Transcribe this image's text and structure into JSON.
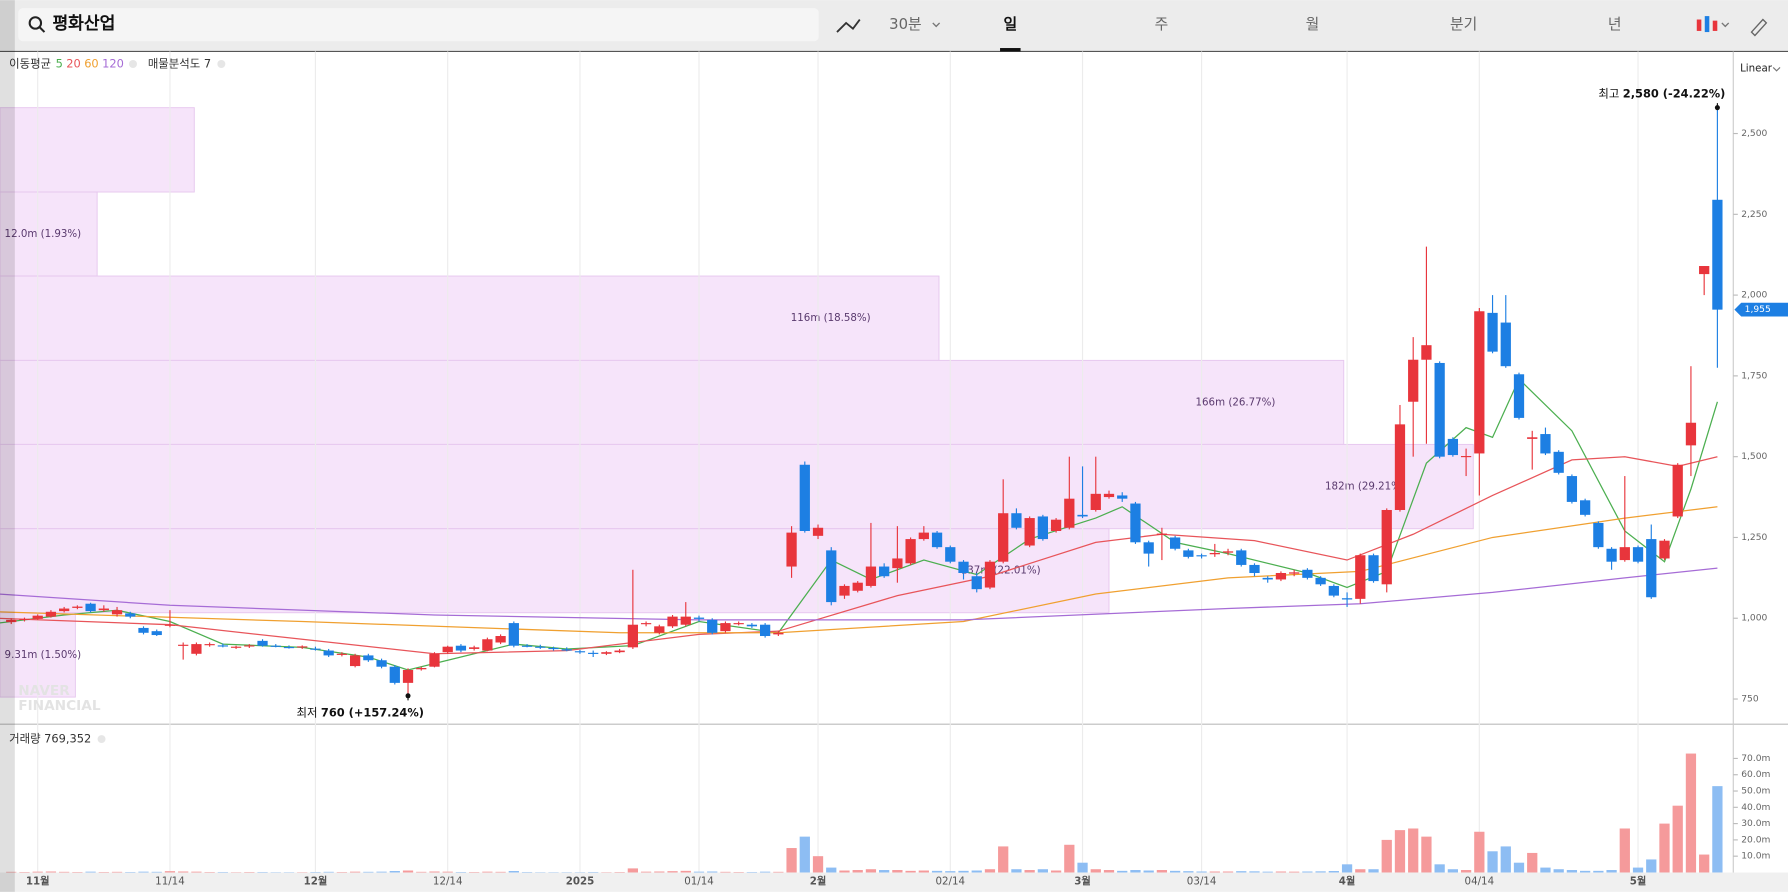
{
  "toolbar": {
    "search": "평화산업",
    "tabs": [
      "30분",
      "일",
      "주",
      "월",
      "분기",
      "년"
    ],
    "selected_tab": 1
  },
  "indicators": {
    "ma_label": "이동평균",
    "profile_label": "매물분석도 7",
    "scale": "Linear",
    "volume_label": "거래량 769,352",
    "watermark": [
      "NAVER",
      "FINANCIAL"
    ]
  },
  "chart_data": [
    {
      "type": "candlestick",
      "up_color": "#e8353c",
      "down_color": "#1d7fe3",
      "grid": "x",
      "xlim": [
        -2.85,
        128.2
      ],
      "ylim": [
        672,
        2754
      ],
      "xticks": [
        {
          "value": 0,
          "label": "11월"
        },
        {
          "value": 10,
          "label": "11/14"
        },
        {
          "value": 21,
          "label": "12월"
        },
        {
          "value": 31,
          "label": "12/14"
        },
        {
          "value": 41,
          "label": "2025"
        },
        {
          "value": 50,
          "label": "01/14"
        },
        {
          "value": 59,
          "label": "2월"
        },
        {
          "value": 69,
          "label": "02/14"
        },
        {
          "value": 79,
          "label": "3월"
        },
        {
          "value": 88,
          "label": "03/14"
        },
        {
          "value": 99,
          "label": "4월"
        },
        {
          "value": 109,
          "label": "04/14"
        },
        {
          "value": 121,
          "label": "5월"
        }
      ],
      "yticks": [
        750,
        {
          "value": 1000,
          "label": "1,000"
        },
        {
          "value": 1250,
          "label": "1,250"
        },
        {
          "value": 1500,
          "label": "1,500"
        },
        {
          "value": 1750,
          "label": "1,750"
        },
        {
          "value": 2000,
          "label": "2,000"
        },
        {
          "value": 2250,
          "label": "2,250"
        },
        {
          "value": 2500,
          "label": "2,500"
        }
      ],
      "x": [
        -2,
        -1,
        0,
        1,
        2,
        3,
        4,
        5,
        6,
        7,
        8,
        9,
        10,
        11,
        12,
        13,
        14,
        15,
        16,
        17,
        18,
        19,
        20,
        21,
        22,
        23,
        24,
        25,
        26,
        27,
        28,
        29,
        30,
        31,
        32,
        33,
        34,
        35,
        36,
        37,
        38,
        39,
        40,
        41,
        42,
        43,
        44,
        45,
        46,
        47,
        48,
        49,
        50,
        51,
        52,
        53,
        54,
        55,
        56,
        57,
        58,
        59,
        60,
        61,
        62,
        63,
        64,
        65,
        66,
        67,
        68,
        69,
        70,
        71,
        72,
        73,
        74,
        75,
        76,
        77,
        78,
        79,
        80,
        81,
        82,
        83,
        84,
        85,
        86,
        87,
        88,
        89,
        90,
        91,
        92,
        93,
        94,
        95,
        96,
        97,
        98,
        99,
        100,
        101,
        102,
        103,
        104,
        105,
        106,
        107,
        108,
        109,
        110,
        111,
        112,
        113,
        114,
        115,
        116,
        117,
        118,
        119,
        120,
        121,
        122,
        123,
        124,
        125,
        126,
        127
      ],
      "open": [
        988,
        995,
        998,
        1005,
        1022,
        1032,
        1045,
        1025,
        1012,
        1015,
        970,
        960,
        978,
        915,
        890,
        918,
        916,
        910,
        914,
        930,
        915,
        911,
        910,
        906,
        900,
        888,
        852,
        885,
        870,
        850,
        800,
        842,
        850,
        895,
        915,
        905,
        900,
        925,
        985,
        915,
        912,
        908,
        904,
        898,
        893,
        890,
        895,
        910,
        982,
        955,
        975,
        980,
        1002,
        995,
        960,
        982,
        980,
        980,
        950,
        1160,
        1475,
        1255,
        1210,
        1070,
        1085,
        1100,
        1160,
        1155,
        1170,
        1245,
        1265,
        1220,
        1175,
        1130,
        1095,
        1175,
        1325,
        1225,
        1315,
        1270,
        1280,
        1320,
        1335,
        1375,
        1380,
        1355,
        1235,
        1258,
        1250,
        1210,
        1195,
        1198,
        1203,
        1210,
        1165,
        1125,
        1120,
        1138,
        1150,
        1125,
        1100,
        1062,
        1060,
        1195,
        1105,
        1335,
        1670,
        1800,
        1790,
        1555,
        1500,
        1510,
        1945,
        1915,
        1755,
        1555,
        1570,
        1515,
        1440,
        1365,
        1295,
        1215,
        1180,
        1220,
        1245,
        1185,
        1315,
        1535,
        2065,
        2295
      ],
      "high": [
        1000,
        1002,
        1012,
        1025,
        1035,
        1040,
        1048,
        1040,
        1035,
        1020,
        975,
        965,
        1025,
        925,
        925,
        925,
        922,
        915,
        920,
        935,
        920,
        916,
        916,
        912,
        905,
        895,
        890,
        890,
        875,
        855,
        845,
        850,
        895,
        915,
        920,
        915,
        940,
        950,
        990,
        920,
        918,
        912,
        910,
        902,
        900,
        898,
        905,
        1150,
        990,
        980,
        1010,
        1050,
        1008,
        1000,
        990,
        990,
        985,
        985,
        962,
        1285,
        1485,
        1290,
        1220,
        1105,
        1115,
        1295,
        1170,
        1285,
        1250,
        1285,
        1270,
        1225,
        1180,
        1140,
        1180,
        1430,
        1340,
        1315,
        1320,
        1310,
        1500,
        1470,
        1500,
        1395,
        1390,
        1360,
        1240,
        1280,
        1255,
        1215,
        1200,
        1230,
        1215,
        1215,
        1170,
        1130,
        1145,
        1150,
        1155,
        1130,
        1105,
        1080,
        1200,
        1200,
        1340,
        1660,
        1870,
        2150,
        1795,
        1560,
        1525,
        1960,
        2000,
        2000,
        1760,
        1580,
        1590,
        1520,
        1445,
        1370,
        1300,
        1220,
        1440,
        1225,
        1290,
        1245,
        1480,
        1780,
        2090,
        2580
      ],
      "low": [
        982,
        990,
        995,
        1002,
        1018,
        1028,
        1018,
        1020,
        1005,
        1000,
        950,
        945,
        972,
        872,
        885,
        912,
        910,
        905,
        908,
        912,
        910,
        906,
        905,
        900,
        880,
        882,
        848,
        865,
        845,
        795,
        760,
        838,
        848,
        890,
        895,
        900,
        898,
        920,
        910,
        910,
        905,
        900,
        898,
        890,
        880,
        886,
        892,
        905,
        975,
        950,
        970,
        975,
        990,
        950,
        955,
        978,
        970,
        940,
        945,
        1125,
        1265,
        1245,
        1040,
        1060,
        1080,
        1095,
        1125,
        1110,
        1165,
        1240,
        1215,
        1170,
        1120,
        1080,
        1090,
        1170,
        1275,
        1220,
        1240,
        1265,
        1275,
        1310,
        1330,
        1370,
        1360,
        1230,
        1160,
        1180,
        1210,
        1185,
        1185,
        1190,
        1195,
        1160,
        1130,
        1110,
        1115,
        1130,
        1120,
        1100,
        1065,
        1035,
        1045,
        1110,
        1080,
        1330,
        1500,
        1540,
        1495,
        1500,
        1440,
        1380,
        1820,
        1775,
        1615,
        1460,
        1505,
        1445,
        1355,
        1315,
        1215,
        1150,
        1175,
        1170,
        1060,
        1180,
        1310,
        1440,
        2000,
        1775
      ],
      "close": [
        995,
        998,
        1008,
        1020,
        1030,
        1036,
        1022,
        1030,
        1025,
        1005,
        955,
        948,
        980,
        918,
        920,
        920,
        914,
        912,
        916,
        915,
        913,
        910,
        913,
        904,
        885,
        890,
        885,
        870,
        850,
        800,
        840,
        846,
        890,
        912,
        900,
        910,
        935,
        945,
        915,
        914,
        910,
        905,
        900,
        895,
        890,
        895,
        900,
        980,
        985,
        975,
        1005,
        1005,
        998,
        955,
        985,
        985,
        975,
        945,
        955,
        1265,
        1270,
        1280,
        1050,
        1100,
        1110,
        1160,
        1130,
        1185,
        1245,
        1265,
        1220,
        1175,
        1140,
        1090,
        1175,
        1325,
        1280,
        1310,
        1245,
        1305,
        1370,
        1315,
        1385,
        1385,
        1370,
        1235,
        1200,
        1262,
        1215,
        1190,
        1192,
        1202,
        1207,
        1165,
        1140,
        1120,
        1140,
        1142,
        1125,
        1105,
        1070,
        1058,
        1195,
        1115,
        1335,
        1600,
        1800,
        1845,
        1500,
        1505,
        1502,
        1950,
        1825,
        1780,
        1620,
        1560,
        1510,
        1450,
        1360,
        1320,
        1220,
        1175,
        1220,
        1175,
        1065,
        1240,
        1475,
        1605,
        2090,
        1955
      ],
      "moving_averages": [
        {
          "name": "5",
          "color": "#4caf50",
          "x": [
            -3,
            2,
            6,
            10,
            14,
            20,
            25,
            28,
            31,
            36,
            40,
            45,
            50,
            56,
            60,
            63,
            67,
            71,
            75,
            80,
            82,
            86,
            90,
            96,
            99,
            102,
            105,
            108,
            110,
            112,
            116,
            120,
            123,
            125,
            127
          ],
          "values": [
            985,
            1010,
            1025,
            990,
            920,
            910,
            880,
            840,
            870,
            920,
            905,
            915,
            990,
            955,
            1180,
            1120,
            1180,
            1135,
            1245,
            1310,
            1345,
            1235,
            1200,
            1140,
            1095,
            1145,
            1480,
            1590,
            1560,
            1740,
            1580,
            1270,
            1175,
            1400,
            1670
          ]
        },
        {
          "name": "20",
          "color": "#e8555a",
          "x": [
            -3,
            10,
            20,
            30,
            40,
            50,
            56,
            65,
            72,
            80,
            85,
            92,
            99,
            104,
            110,
            116,
            120,
            124,
            127
          ],
          "values": [
            1000,
            980,
            935,
            890,
            900,
            950,
            960,
            1070,
            1130,
            1235,
            1260,
            1240,
            1180,
            1260,
            1380,
            1490,
            1500,
            1470,
            1500
          ]
        },
        {
          "name": "60",
          "color": "#f0a030",
          "x": [
            -3,
            20,
            44,
            56,
            70,
            80,
            90,
            100,
            110,
            120,
            127
          ],
          "values": [
            1020,
            990,
            955,
            955,
            990,
            1075,
            1125,
            1145,
            1250,
            1310,
            1345
          ]
        },
        {
          "name": "120",
          "color": "#a66cd6",
          "x": [
            -3,
            10,
            30,
            50,
            70,
            90,
            100,
            110,
            120,
            127
          ],
          "values": [
            1075,
            1040,
            1010,
            995,
            995,
            1030,
            1045,
            1080,
            1125,
            1155
          ]
        }
      ],
      "volume_profile": {
        "color": "#f6e4fa",
        "bands": [
          {
            "low": 2319,
            "high": 2580,
            "value": 24,
            "label": null
          },
          {
            "low": 2059,
            "high": 2319,
            "value": 12.0,
            "label": "12.0m (1.93%)"
          },
          {
            "low": 1798,
            "high": 2059,
            "value": 116,
            "label": "116m (18.58%)"
          },
          {
            "low": 1538,
            "high": 1798,
            "value": 166,
            "label": "166m (26.77%)"
          },
          {
            "low": 1277,
            "high": 1538,
            "value": 182,
            "label": "182m (29.21%)"
          },
          {
            "low": 1017,
            "high": 1277,
            "value": 137,
            "label": "137m (22.01%)"
          },
          {
            "low": 756,
            "high": 1017,
            "value": 9.31,
            "label": "9.31m (1.50%)"
          }
        ]
      },
      "annotations": {
        "high": {
          "label": "최고",
          "text": "2,580 (-24.22%)",
          "x": 127,
          "value": 2580
        },
        "low": {
          "label": "최저",
          "text": "760 (+157.24%)",
          "x": 28,
          "value": 760
        }
      },
      "last_price": {
        "value": 1955,
        "label": "1,955"
      }
    },
    {
      "type": "bar",
      "up_color": "#f59a9b",
      "down_color": "#8dbdf3",
      "ylim": [
        0,
        91
      ],
      "yticks": [
        {
          "value": 10,
          "label": "10.0m"
        },
        {
          "value": 20,
          "label": "20.0m"
        },
        {
          "value": 30,
          "label": "30.0m"
        },
        {
          "value": 40,
          "label": "40.0m"
        },
        {
          "value": 50,
          "label": "50.0m"
        },
        {
          "value": 60,
          "label": "60.0m"
        },
        {
          "value": 70,
          "label": "70.0m"
        }
      ],
      "x": [
        -2,
        -1,
        0,
        1,
        2,
        3,
        4,
        5,
        6,
        7,
        8,
        9,
        10,
        11,
        12,
        13,
        14,
        15,
        16,
        17,
        18,
        19,
        20,
        21,
        22,
        23,
        24,
        25,
        26,
        27,
        28,
        29,
        30,
        31,
        32,
        33,
        34,
        35,
        36,
        37,
        38,
        39,
        40,
        41,
        42,
        43,
        44,
        45,
        46,
        47,
        48,
        49,
        50,
        51,
        52,
        53,
        54,
        55,
        56,
        57,
        58,
        59,
        60,
        61,
        62,
        63,
        64,
        65,
        66,
        67,
        68,
        69,
        70,
        71,
        72,
        73,
        74,
        75,
        76,
        77,
        78,
        79,
        80,
        81,
        82,
        83,
        84,
        85,
        86,
        87,
        88,
        89,
        90,
        91,
        92,
        93,
        94,
        95,
        96,
        97,
        98,
        99,
        100,
        101,
        102,
        103,
        104,
        105,
        106,
        107,
        108,
        109,
        110,
        111,
        112,
        113,
        114,
        115,
        116,
        117,
        118,
        119,
        120,
        121,
        122,
        123,
        124,
        125,
        126,
        127
      ],
      "values": [
        0.4,
        0.3,
        0.5,
        0.6,
        0.4,
        0.3,
        0.5,
        0.3,
        0.4,
        0.3,
        0.5,
        0.4,
        0.8,
        0.6,
        0.5,
        0.3,
        0.3,
        0.2,
        0.3,
        0.3,
        0.2,
        0.2,
        0.2,
        0.3,
        0.4,
        0.3,
        0.5,
        0.4,
        0.5,
        0.9,
        1.2,
        0.4,
        0.6,
        0.5,
        0.3,
        0.3,
        0.5,
        0.4,
        0.9,
        0.3,
        0.2,
        0.2,
        0.2,
        0.2,
        0.3,
        0.2,
        0.3,
        2.5,
        0.5,
        0.6,
        0.8,
        1.0,
        0.5,
        0.6,
        0.4,
        0.3,
        0.3,
        0.5,
        0.4,
        15,
        22,
        10,
        3,
        1.2,
        1.5,
        2,
        1.5,
        1.5,
        1,
        1.2,
        1,
        0.8,
        1,
        1.2,
        2,
        16,
        2,
        1.5,
        2,
        1.2,
        17,
        6,
        2,
        1.5,
        1,
        1.5,
        1.2,
        1.5,
        1,
        0.8,
        0.6,
        0.6,
        0.6,
        0.8,
        0.7,
        0.5,
        0.6,
        0.5,
        0.6,
        0.7,
        0.9,
        5,
        2,
        2,
        20,
        26,
        27,
        22,
        5,
        2,
        1.5,
        25,
        13,
        16,
        6,
        12,
        3,
        2,
        1.5,
        1,
        1,
        1.5,
        27,
        3,
        8,
        30,
        41,
        73,
        11,
        53
      ]
    }
  ]
}
